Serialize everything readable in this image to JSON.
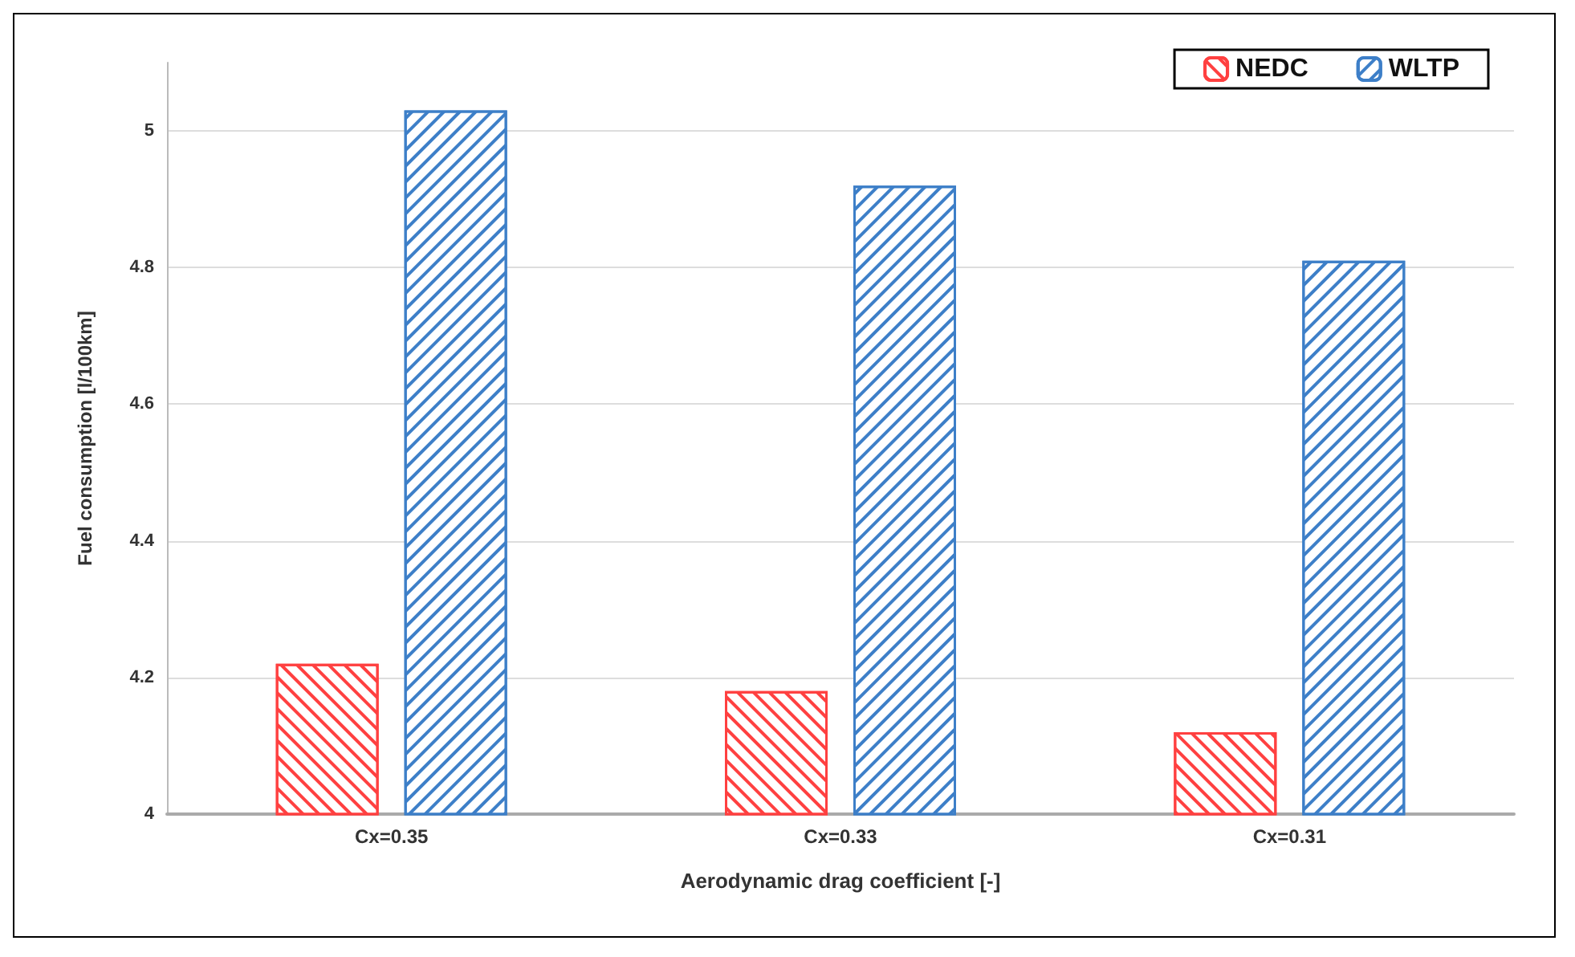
{
  "chart_data": {
    "type": "bar",
    "xlabel": "Aerodynamic drag coefficient [-]",
    "ylabel": "Fuel consumption [l/100km]",
    "categories": [
      "Cx=0.35",
      "Cx=0.33",
      "Cx=0.31"
    ],
    "series": [
      {
        "name": "NEDC",
        "color": "#ff4040",
        "values": [
          4.22,
          4.18,
          4.12
        ]
      },
      {
        "name": "WLTP",
        "color": "#3d7fc8",
        "values": [
          5.03,
          4.92,
          4.81
        ]
      }
    ],
    "ylim": [
      4,
      5.1
    ],
    "yticks": [
      4,
      4.2,
      4.4,
      4.6,
      4.8,
      5
    ],
    "grid": "y",
    "legend": "top right"
  }
}
